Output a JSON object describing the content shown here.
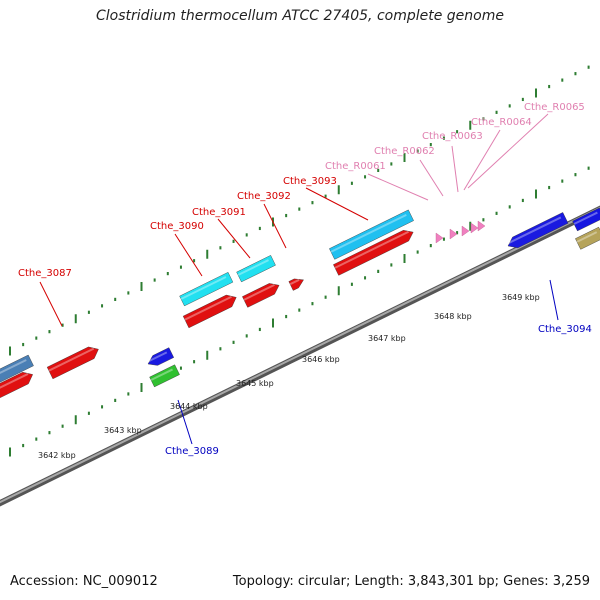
{
  "title": "Clostridium thermocellum ATCC 27405, complete genome",
  "footer": {
    "accession": "Accession: NC_009012",
    "summary": "Topology: circular; Length: 3,843,301 bp; Genes: 3,259"
  },
  "colors": {
    "backbone": "#808080",
    "tick": "#2e7d32",
    "label_red": "#d40000",
    "label_pink": "#e080b0",
    "label_blue": "#0000c0"
  },
  "scale_labels": [
    {
      "text": "3642 kbp",
      "kbp": 3642
    },
    {
      "text": "3643 kbp",
      "kbp": 3643
    },
    {
      "text": "3644 kbp",
      "kbp": 3644
    },
    {
      "text": "3645 kbp",
      "kbp": 3645
    },
    {
      "text": "3646 kbp",
      "kbp": 3646
    },
    {
      "text": "3647 kbp",
      "kbp": 3647
    },
    {
      "text": "3648 kbp",
      "kbp": 3648
    },
    {
      "text": "3649 kbp",
      "kbp": 3649
    }
  ],
  "gene_labels": [
    {
      "text": "Cthe_3087",
      "type": "cds"
    },
    {
      "text": "Cthe_3090",
      "type": "cds"
    },
    {
      "text": "Cthe_3091",
      "type": "cds"
    },
    {
      "text": "Cthe_3092",
      "type": "cds"
    },
    {
      "text": "Cthe_3093",
      "type": "cds"
    },
    {
      "text": "Cthe_R0061",
      "type": "rna"
    },
    {
      "text": "Cthe_R0062",
      "type": "rna"
    },
    {
      "text": "Cthe_R0063",
      "type": "rna"
    },
    {
      "text": "Cthe_R0064",
      "type": "rna"
    },
    {
      "text": "Cthe_R0065",
      "type": "rna"
    },
    {
      "text": "Cthe_3089",
      "type": "reverse"
    },
    {
      "text": "Cthe_3094",
      "type": "reverse"
    }
  ]
}
